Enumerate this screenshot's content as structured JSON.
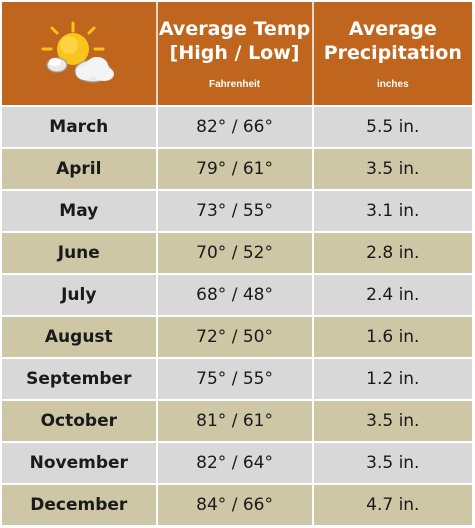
{
  "header": {
    "temp_title_line1": "Average Temp",
    "temp_title_line2": "[High / Low]",
    "temp_unit": "Fahrenheit",
    "precip_title_line1": "Average",
    "precip_title_line2": "Precipitation",
    "precip_unit": "inches",
    "icon": "sun-behind-cloud-icon"
  },
  "colors": {
    "header_bg": "#c0651d",
    "row_gray": "#d8d8d8",
    "row_tan": "#cdc7a5"
  },
  "rows": [
    {
      "month": "March",
      "temp": "82° / 66°",
      "precip": "5.5 in."
    },
    {
      "month": "April",
      "temp": "79° / 61°",
      "precip": "3.5 in."
    },
    {
      "month": "May",
      "temp": "73° / 55°",
      "precip": "3.1 in."
    },
    {
      "month": "June",
      "temp": "70° / 52°",
      "precip": "2.8 in."
    },
    {
      "month": "July",
      "temp": "68° / 48°",
      "precip": "2.4 in."
    },
    {
      "month": "August",
      "temp": "72° / 50°",
      "precip": "1.6 in."
    },
    {
      "month": "September",
      "temp": "75° / 55°",
      "precip": "1.2 in."
    },
    {
      "month": "October",
      "temp": "81° / 61°",
      "precip": "3.5 in."
    },
    {
      "month": "November",
      "temp": "82° / 64°",
      "precip": "3.5 in."
    },
    {
      "month": "December",
      "temp": "84° / 66°",
      "precip": "4.7 in."
    }
  ]
}
